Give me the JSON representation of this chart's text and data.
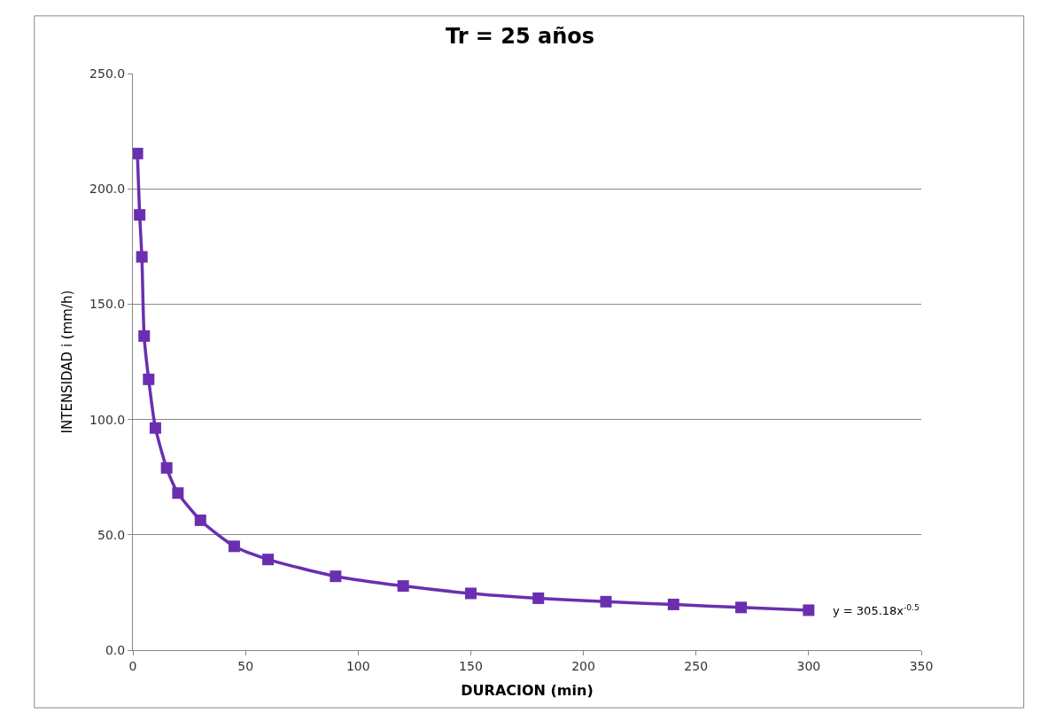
{
  "chart_data": {
    "type": "line",
    "title": "Tr = 25 años",
    "xlabel": "DURACION (min)",
    "ylabel": "INTENSIDAD i (mm/h)",
    "x": [
      2,
      3,
      4,
      5,
      7,
      10,
      15,
      20,
      30,
      45,
      60,
      90,
      120,
      150,
      180,
      210,
      240,
      270,
      300
    ],
    "series": [
      {
        "color": "#6a2fb0",
        "values": [
          215.3,
          188.7,
          170.5,
          136.2,
          117.4,
          96.3,
          79.0,
          68.1,
          56.3,
          45.0,
          39.3,
          32.0,
          27.8,
          24.6,
          22.5,
          21.0,
          19.8,
          18.5,
          17.3
        ]
      }
    ],
    "xlim": [
      0,
      350
    ],
    "xticks": [
      0,
      50,
      100,
      150,
      200,
      250,
      300,
      350
    ],
    "ylim": [
      0,
      250
    ],
    "yticks": [
      {
        "value": 0,
        "label": "0.0"
      },
      {
        "value": 50,
        "label": "50.0"
      },
      {
        "value": 100,
        "label": "100.0"
      },
      {
        "value": 150,
        "label": "150.0"
      },
      {
        "value": 200,
        "label": "200.0"
      },
      {
        "value": 250,
        "label": "250.0"
      }
    ],
    "grid": "y",
    "marker": "square",
    "line_style": "solid",
    "annotations": [
      "y = 305.18x$^{-0.5}$"
    ]
  }
}
